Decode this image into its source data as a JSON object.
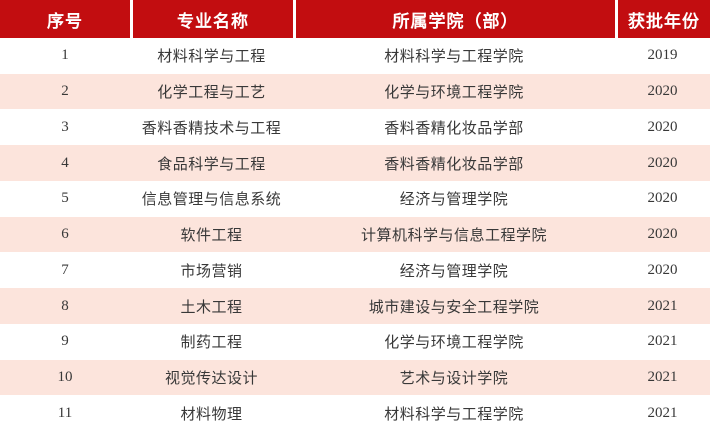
{
  "chart_data": {
    "type": "table",
    "title": "",
    "columns": [
      "序号",
      "专业名称",
      "所属学院（部）",
      "获批年份"
    ],
    "rows": [
      {
        "index": "1",
        "major": "材料科学与工程",
        "college": "材料科学与工程学院",
        "year": "2019"
      },
      {
        "index": "2",
        "major": "化学工程与工艺",
        "college": "化学与环境工程学院",
        "year": "2020"
      },
      {
        "index": "3",
        "major": "香料香精技术与工程",
        "college": "香料香精化妆品学部",
        "year": "2020"
      },
      {
        "index": "4",
        "major": "食品科学与工程",
        "college": "香料香精化妆品学部",
        "year": "2020"
      },
      {
        "index": "5",
        "major": "信息管理与信息系统",
        "college": "经济与管理学院",
        "year": "2020"
      },
      {
        "index": "6",
        "major": "软件工程",
        "college": "计算机科学与信息工程学院",
        "year": "2020"
      },
      {
        "index": "7",
        "major": "市场营销",
        "college": "经济与管理学院",
        "year": "2020"
      },
      {
        "index": "8",
        "major": "土木工程",
        "college": "城市建设与安全工程学院",
        "year": "2021"
      },
      {
        "index": "9",
        "major": "制药工程",
        "college": "化学与环境工程学院",
        "year": "2021"
      },
      {
        "index": "10",
        "major": "视觉传达设计",
        "college": "艺术与设计学院",
        "year": "2021"
      },
      {
        "index": "11",
        "major": "材料物理",
        "college": "材料科学与工程学院",
        "year": "2021"
      }
    ]
  },
  "table": {
    "header": {
      "index_label": "序号",
      "major_label": "专业名称",
      "college_label": "所属学院（部）",
      "year_label": "获批年份"
    },
    "colors": {
      "header_bg": "#c20d10",
      "header_text": "#ffffff",
      "row_bg": "#ffffff",
      "row_alt_bg": "#fce4dc",
      "body_text": "#383838"
    }
  }
}
